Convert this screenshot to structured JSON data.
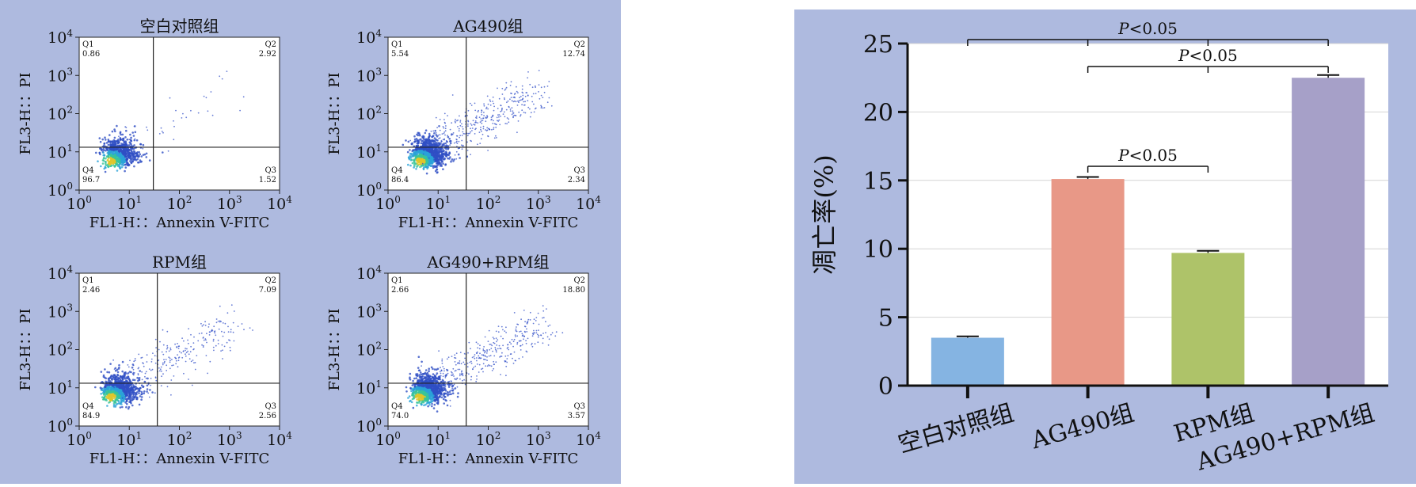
{
  "flow_panels": [
    {
      "title": "空白对照组",
      "q1_label": "Q1",
      "q1_value": "0.86",
      "q2_label": "Q2",
      "q2_value": "2.92",
      "q3_label": "Q3",
      "q3_value": "1.52",
      "q4_label": "Q4",
      "q4_value": "96.7"
    },
    {
      "title": "AG490组",
      "q1_label": "Q1",
      "q1_value": "5.54",
      "q2_label": "Q2",
      "q2_value": "12.74",
      "q3_label": "Q3",
      "q3_value": "2.34",
      "q4_label": "Q4",
      "q4_value": "86.4"
    },
    {
      "title": "RPM组",
      "q1_label": "Q1",
      "q1_value": "2.46",
      "q2_label": "Q2",
      "q2_value": "7.09",
      "q3_label": "Q3",
      "q3_value": "2.56",
      "q4_label": "Q4",
      "q4_value": "84.9"
    },
    {
      "title": "AG490+RPM组",
      "q1_label": "Q1",
      "q1_value": "2.66",
      "q2_label": "Q2",
      "q2_value": "18.80",
      "q3_label": "Q3",
      "q3_value": "3.57",
      "q4_label": "Q4",
      "q4_value": "74.0"
    }
  ],
  "flow_axes": {
    "xlabel": "FL1-H：：Annexin V-FITC",
    "ylabel": "FL3-H：：PI",
    "tick_base": "10",
    "tick_exponents": [
      "0",
      "1",
      "2",
      "3",
      "4"
    ]
  },
  "chart_data": {
    "type": "bar",
    "categories": [
      "空白对照组",
      "AG490组",
      "RPM组",
      "AG490+RPM组"
    ],
    "values": [
      3.5,
      15.1,
      9.7,
      22.5
    ],
    "errors": [
      0.1,
      0.15,
      0.15,
      0.2
    ],
    "colors": [
      "#85b4e2",
      "#e89887",
      "#aec369",
      "#a6a0c8"
    ],
    "ylabel": "凋亡率(%)",
    "ylim": [
      0,
      25
    ],
    "yticks": [
      0,
      5,
      10,
      15,
      20,
      25
    ],
    "grid": true,
    "significance": [
      {
        "from": 0,
        "to": 3,
        "p_symbol": "P",
        "p_rest": "<0.05"
      },
      {
        "from": 1,
        "to": 3,
        "p_symbol": "P",
        "p_rest": "<0.05"
      },
      {
        "from": 1,
        "to": 2,
        "p_symbol": "P",
        "p_rest": "<0.05"
      }
    ]
  }
}
